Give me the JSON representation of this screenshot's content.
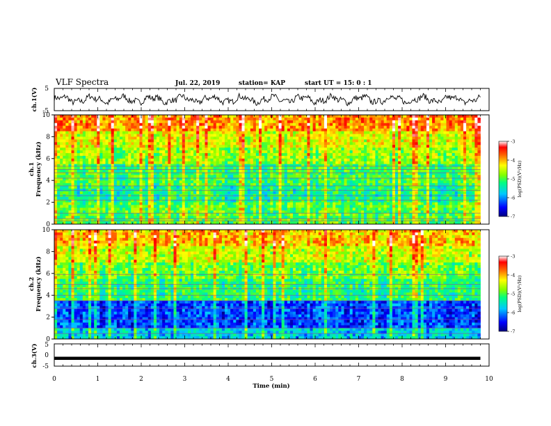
{
  "header": {
    "title": "VLF Spectra",
    "date": "Jul. 22, 2019",
    "station": "station= KAP",
    "start_ut": "start UT =  15: 0  : 1"
  },
  "chart_data": [
    {
      "type": "line",
      "panel": "ch1-waveform",
      "ylabel": "ch.1(V)",
      "ylim": [
        -5,
        5
      ],
      "yticks": [
        "5",
        "-5"
      ],
      "xlim": [
        0,
        10
      ],
      "data_extent_x": [
        0,
        9.8
      ],
      "color": "#000000",
      "description_level": "noisy signal oscillating roughly between -2.5 and 2.5 V"
    },
    {
      "type": "heatmap",
      "panel": "ch1-spectrogram",
      "ylabel": "ch.1\nFrequency (kHz)",
      "ylim": [
        0,
        10
      ],
      "yticks": [
        "0",
        "2",
        "4",
        "6",
        "8",
        "10"
      ],
      "xlim": [
        0,
        10
      ],
      "data_extent_x": [
        0,
        9.8
      ],
      "colorbar": {
        "label": "log(PSD)(V²/Hz)",
        "range": [
          -7,
          -3
        ],
        "ticks": [
          "-3",
          "-4",
          "-5",
          "-6",
          "-7"
        ]
      },
      "bands": [
        {
          "fmin": 0,
          "fmax": 2,
          "log_psd": -4.9
        },
        {
          "fmin": 2,
          "fmax": 3.5,
          "log_psd": -5.2
        },
        {
          "fmin": 3.5,
          "fmax": 5.5,
          "log_psd": -5.0
        },
        {
          "fmin": 5.5,
          "fmax": 7,
          "log_psd": -4.6
        },
        {
          "fmin": 7,
          "fmax": 8.5,
          "log_psd": -4.3
        },
        {
          "fmin": 8.5,
          "fmax": 10,
          "log_psd": -3.8
        }
      ],
      "lines_khz": [
        0.3,
        0.5,
        1.0,
        2.2,
        2.6,
        3.1,
        3.5,
        4.2,
        4.7,
        5.0,
        5.3
      ]
    },
    {
      "type": "heatmap",
      "panel": "ch2-spectrogram",
      "ylabel": "ch.2\nFrequency (kHz)",
      "ylim": [
        0,
        10
      ],
      "yticks": [
        "0",
        "2",
        "4",
        "6",
        "8",
        "10"
      ],
      "xlim": [
        0,
        10
      ],
      "data_extent_x": [
        0,
        9.8
      ],
      "colorbar": {
        "label": "log(PSD)(V²/Hz)",
        "range": [
          -7,
          -3
        ],
        "ticks": [
          "-3",
          "-4",
          "-5",
          "-6",
          "-7"
        ]
      },
      "bands": [
        {
          "fmin": 0,
          "fmax": 1,
          "log_psd": -5.6
        },
        {
          "fmin": 1,
          "fmax": 3.5,
          "log_psd": -6.2
        },
        {
          "fmin": 3.5,
          "fmax": 5.5,
          "log_psd": -5.1
        },
        {
          "fmin": 5.5,
          "fmax": 7,
          "log_psd": -4.8
        },
        {
          "fmin": 7,
          "fmax": 8.5,
          "log_psd": -4.4
        },
        {
          "fmin": 8.5,
          "fmax": 10,
          "log_psd": -4.0
        }
      ],
      "lines_khz": [
        0.5,
        1.0,
        1.8,
        2.8,
        3.5,
        4.0,
        4.6,
        5.0,
        5.9
      ]
    },
    {
      "type": "line",
      "panel": "ch3-waveform",
      "ylabel": "ch.3(V)",
      "ylim": [
        -5,
        5
      ],
      "yticks": [
        "5",
        "0",
        "-5"
      ],
      "xlim": [
        0,
        10
      ],
      "data_extent_x": [
        0,
        9.8
      ],
      "constant_value": -1.5,
      "color": "#000000"
    }
  ],
  "x_axis": {
    "label": "Time (min)",
    "ticks": [
      "0",
      "1",
      "2",
      "3",
      "4",
      "5",
      "6",
      "7",
      "8",
      "9",
      "10"
    ],
    "range": [
      0,
      10
    ]
  }
}
